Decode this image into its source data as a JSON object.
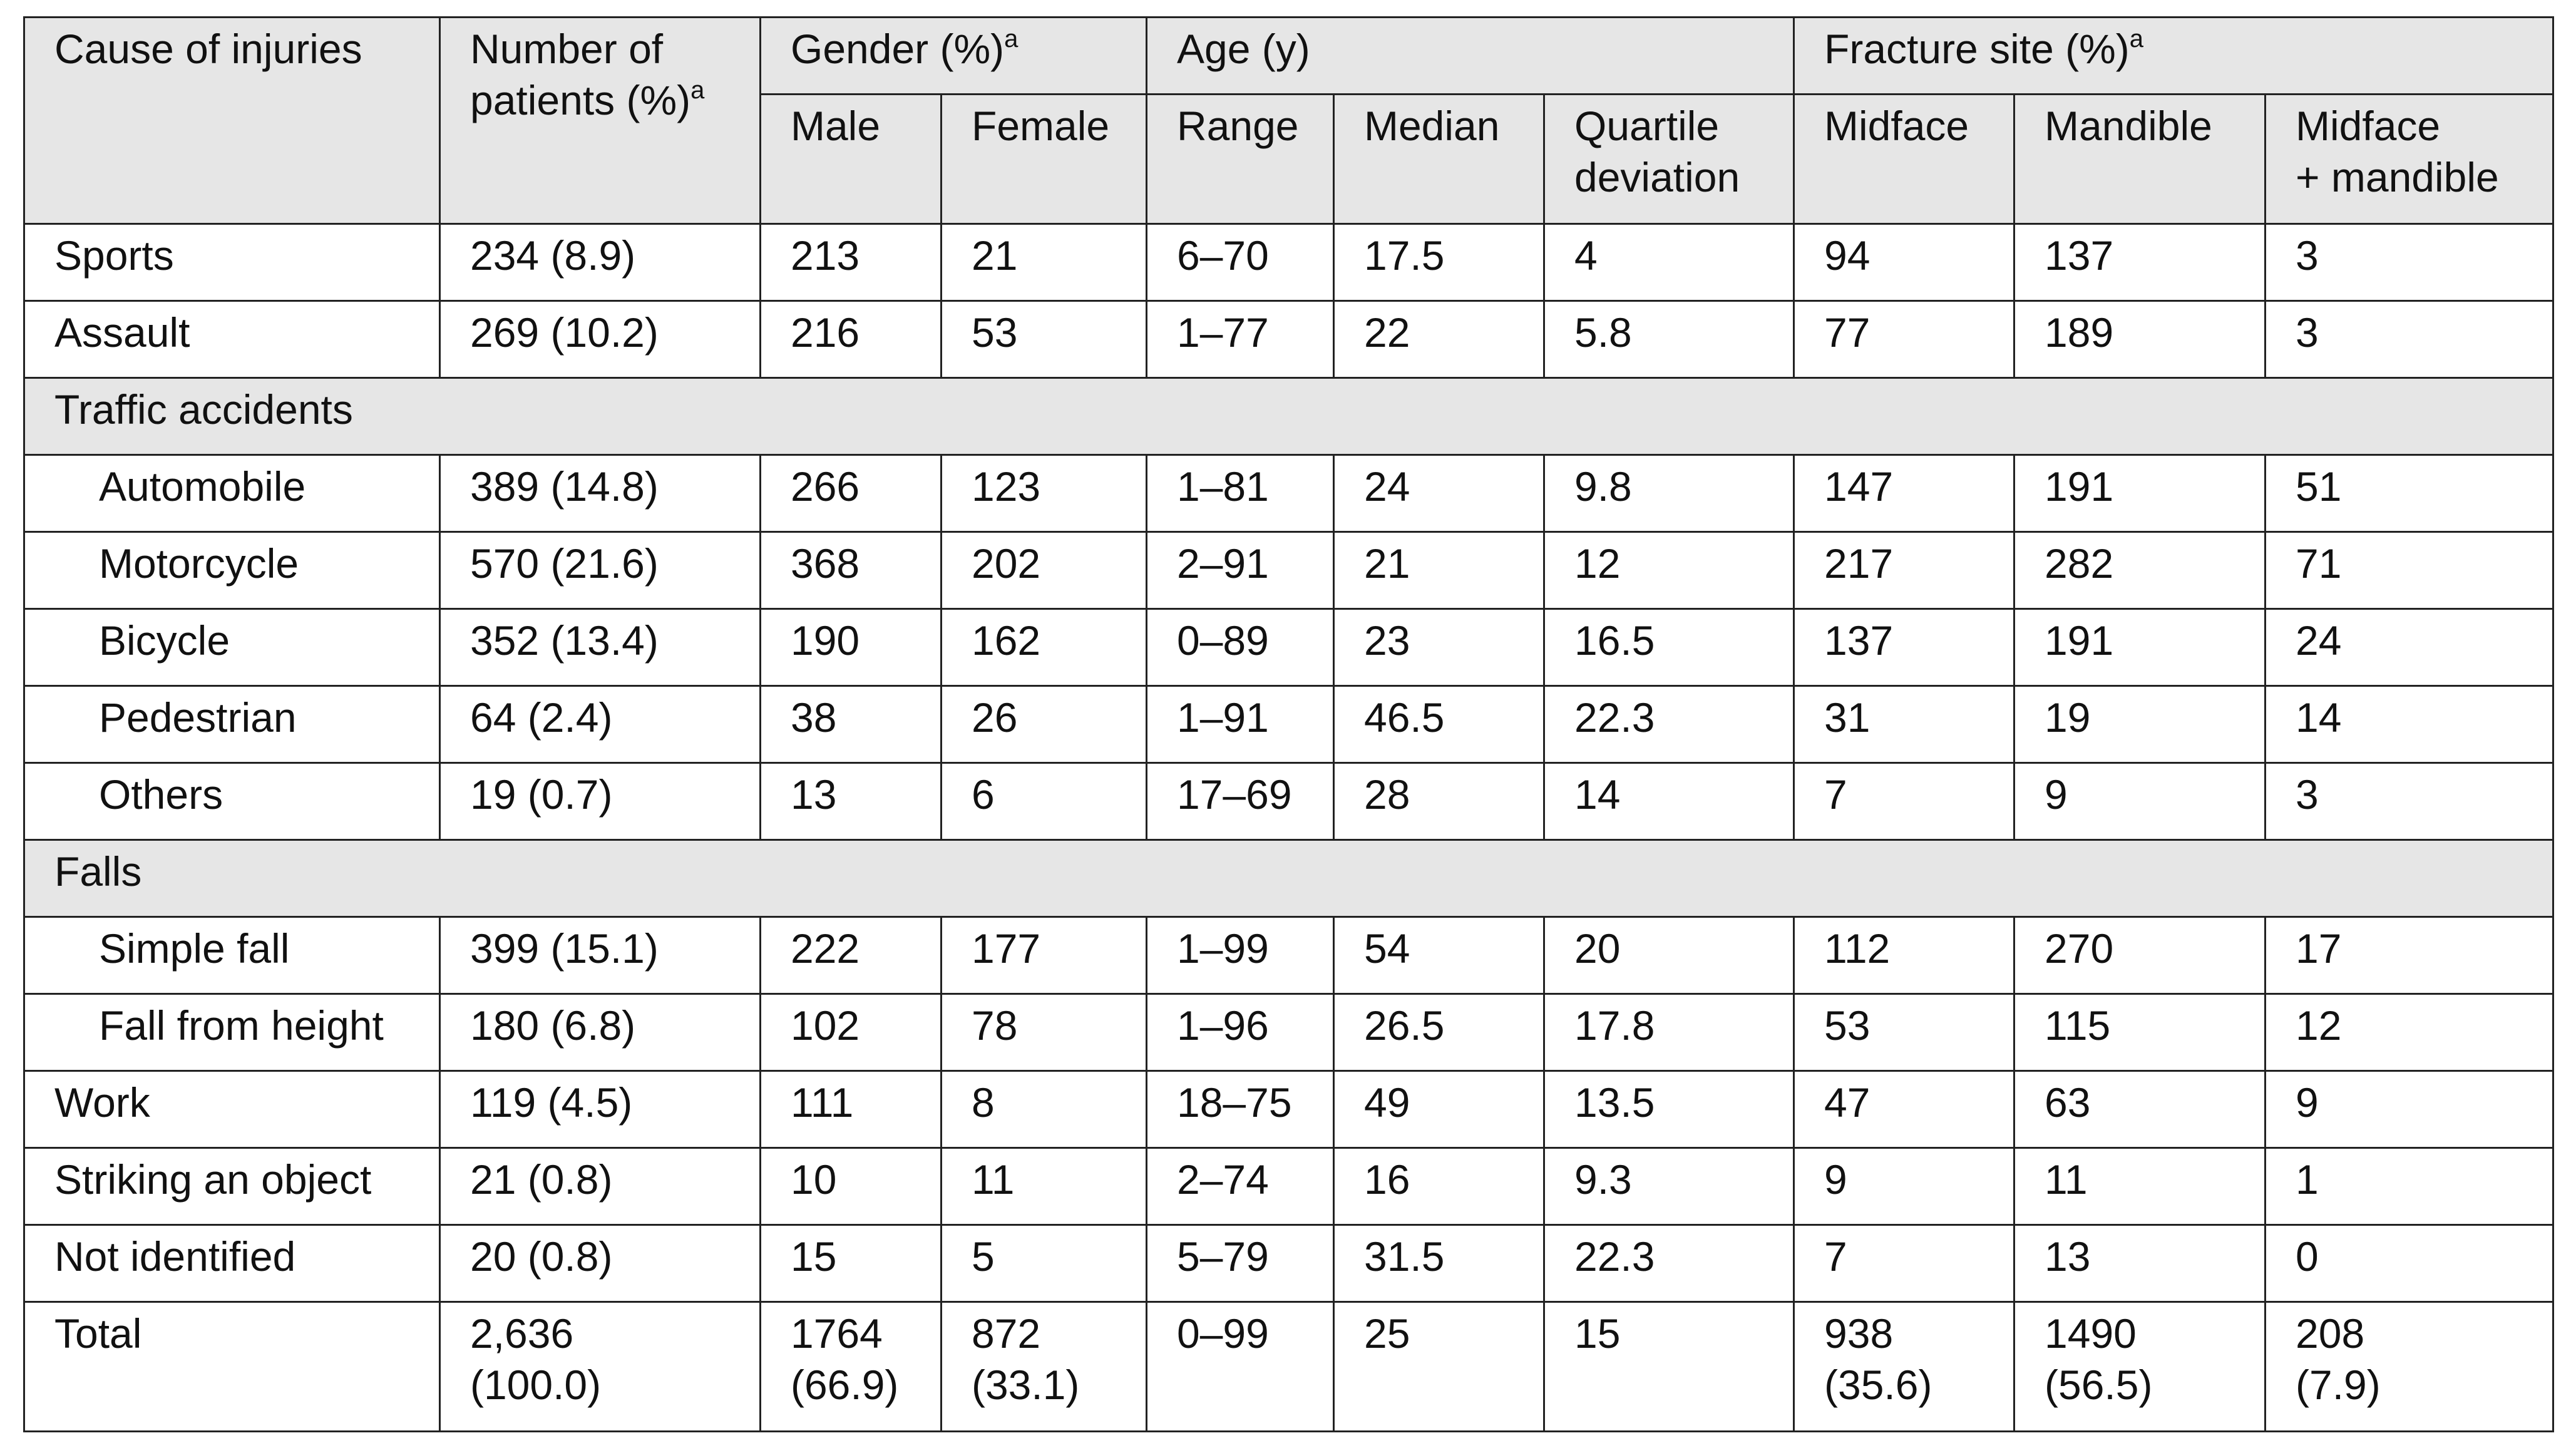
{
  "header": {
    "top": [
      {
        "text": "Cause of injuries"
      },
      {
        "text": "Number of patients (%)",
        "sup": "a"
      },
      {
        "text": "Gender (%)",
        "sup": "a"
      },
      {
        "text": "Age (y)"
      },
      {
        "text": "Fracture site (%)",
        "sup": "a"
      }
    ],
    "sub": [
      "Male",
      "Female",
      "Range",
      "Median",
      "Quartile deviation",
      "Midface",
      "Mandible",
      "Midface\n+ mandible"
    ]
  },
  "table": {
    "rows": [
      {
        "cells": [
          "Sports",
          "234 (8.9)",
          "213",
          "21",
          "6–70",
          "17.5",
          "4",
          "94",
          "137",
          "3"
        ]
      },
      {
        "cells": [
          "Assault",
          "269 (10.2)",
          "216",
          "53",
          "1–77",
          "22",
          "5.8",
          "77",
          "189",
          "3"
        ]
      },
      {
        "section": "Traffic accidents"
      },
      {
        "cells": [
          "Automobile",
          "389 (14.8)",
          "266",
          "123",
          "1–81",
          "24",
          "9.8",
          "147",
          "191",
          "51"
        ],
        "indent": true
      },
      {
        "cells": [
          "Motorcycle",
          "570 (21.6)",
          "368",
          "202",
          "2–91",
          "21",
          "12",
          "217",
          "282",
          "71"
        ],
        "indent": true
      },
      {
        "cells": [
          "Bicycle",
          "352 (13.4)",
          "190",
          "162",
          "0–89",
          "23",
          "16.5",
          "137",
          "191",
          "24"
        ],
        "indent": true
      },
      {
        "cells": [
          "Pedestrian",
          "64 (2.4)",
          "38",
          "26",
          "1–91",
          "46.5",
          "22.3",
          "31",
          "19",
          "14"
        ],
        "indent": true
      },
      {
        "cells": [
          "Others",
          "19 (0.7)",
          "13",
          "6",
          "17–69",
          "28",
          "14",
          "7",
          "9",
          "3"
        ],
        "indent": true
      },
      {
        "section": "Falls"
      },
      {
        "cells": [
          "Simple fall",
          "399 (15.1)",
          "222",
          "177",
          "1–99",
          "54",
          "20",
          "112",
          "270",
          "17"
        ],
        "indent": true
      },
      {
        "cells": [
          "Fall from height",
          "180 (6.8)",
          "102",
          "78",
          "1–96",
          "26.5",
          "17.8",
          "53",
          "115",
          "12"
        ],
        "indent": true
      },
      {
        "cells": [
          "Work",
          "119 (4.5)",
          "111",
          "8",
          "18–75",
          "49",
          "13.5",
          "47",
          "63",
          "9"
        ]
      },
      {
        "cells": [
          "Striking an object",
          "21 (0.8)",
          "10",
          "11",
          "2–74",
          "16",
          "9.3",
          "9",
          "11",
          "1"
        ]
      },
      {
        "cells": [
          "Not identified",
          "20 (0.8)",
          "15",
          "5",
          "5–79",
          "31.5",
          "22.3",
          "7",
          "13",
          "0"
        ]
      },
      {
        "cells": [
          "Total",
          "2,636\n(100.0)",
          "1764\n(66.9)",
          "872\n(33.1)",
          "0–99",
          "25",
          "15",
          "938\n(35.6)",
          "1490\n(56.5)",
          "208\n(7.9)"
        ]
      }
    ]
  }
}
